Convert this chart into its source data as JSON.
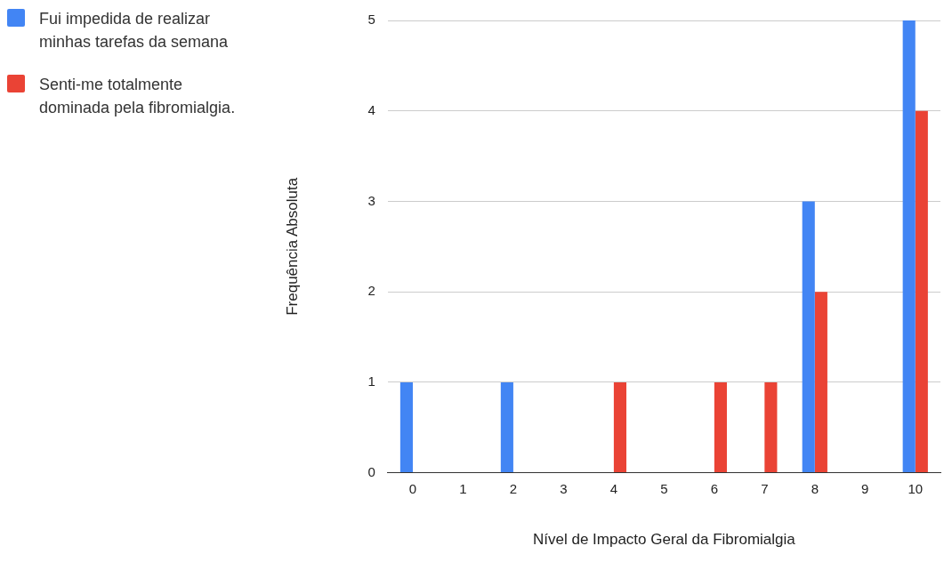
{
  "chart_data": {
    "type": "bar",
    "xlabel": "Nível de Impacto Geral da Fibromialgia",
    "ylabel": "Frequência Absoluta",
    "categories": [
      "0",
      "1",
      "2",
      "3",
      "4",
      "5",
      "6",
      "7",
      "8",
      "9",
      "10"
    ],
    "series": [
      {
        "name": "Fui impedida de realizar minhas tarefas da semana",
        "color": "#4285f4",
        "values": [
          1,
          0,
          1,
          0,
          0,
          0,
          0,
          0,
          3,
          0,
          5
        ]
      },
      {
        "name": "Senti-me totalmente dominada pela fibromialgia.",
        "color": "#ea4335",
        "values": [
          0,
          0,
          0,
          0,
          1,
          0,
          1,
          1,
          2,
          0,
          4
        ]
      }
    ],
    "ylim": [
      0,
      5
    ],
    "yticks": [
      0,
      1,
      2,
      3,
      4,
      5
    ],
    "grid": "y",
    "legend": "left"
  }
}
